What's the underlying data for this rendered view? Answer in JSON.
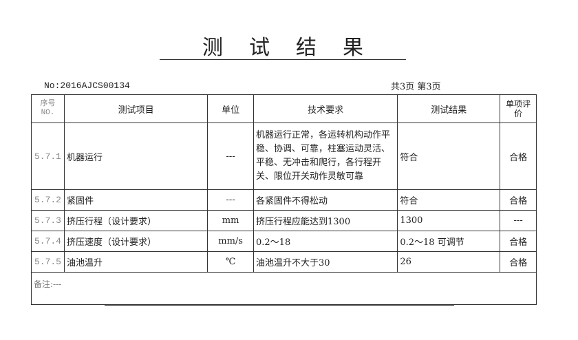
{
  "title": "测试结果",
  "doc_no": "No:2016AJCS00134",
  "pages": "共3页  第3页",
  "headers": {
    "seq": "序号 NO.",
    "item": "测试项目",
    "unit": "单位",
    "requirement": "技术要求",
    "result": "测试结果",
    "evaluation": "单项评价"
  },
  "rows": [
    {
      "seq": "5.7.1",
      "item": "机器运行",
      "unit": "---",
      "requirement": "机器运行正常，各运转机构动作平稳、协调、可靠，柱塞运动灵活、平稳、无冲击和爬行，各行程开关、限位开关动作灵敏可靠",
      "result": "符合",
      "evaluation": "合格"
    },
    {
      "seq": "5.7.2",
      "item": "紧固件",
      "unit": "---",
      "requirement": "各紧固件不得松动",
      "result": "符合",
      "evaluation": "合格"
    },
    {
      "seq": "5.7.3",
      "item": "挤压行程（设计要求）",
      "unit": "mm",
      "requirement": "挤压行程应能达到1300",
      "result": "1300",
      "evaluation": "---"
    },
    {
      "seq": "5.7.4",
      "item": "挤压速度（设计要求）",
      "unit": "mm/s",
      "requirement": "0.2～18",
      "result": "0.2～18 可调节",
      "evaluation": "合格"
    },
    {
      "seq": "5.7.5",
      "item": "油池温升",
      "unit": "℃",
      "requirement": "油池温升不大于30",
      "result": "26",
      "evaluation": "合格"
    }
  ],
  "remark": "备注:---"
}
